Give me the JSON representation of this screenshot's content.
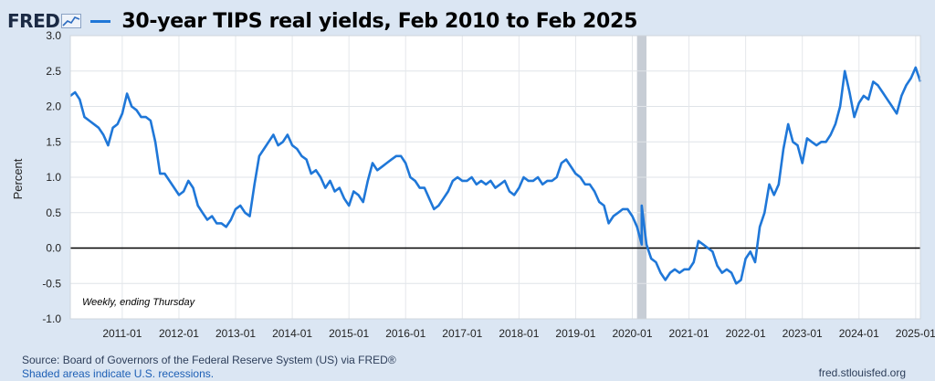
{
  "header": {
    "logo_text": "FRED",
    "logo_icon": "fred-graph-icon",
    "title": "30-year TIPS real yields, Feb 2010 to Feb 2025"
  },
  "colors": {
    "series": "#1f77d8",
    "background": "#dbe6f3",
    "plot_bg": "#ffffff",
    "recession": "#c7cdd5"
  },
  "footer": {
    "source": "Source: Board of Governors of the Federal Reserve System (US) via FRED®",
    "shading_note": "Shaded areas indicate U.S. recessions.",
    "url": "fred.stlouisfed.org"
  },
  "chart_data": {
    "type": "line",
    "title": "30-year TIPS real yields, Feb 2010 to Feb 2025",
    "ylabel": "Percent",
    "xlabel": "",
    "ylim": [
      -1.0,
      3.0
    ],
    "xlim": [
      "2010-02",
      "2025-02"
    ],
    "y_ticks": [
      "3.0",
      "2.5",
      "2.0",
      "1.5",
      "1.0",
      "0.5",
      "0.0",
      "-0.5",
      "-1.0"
    ],
    "x_ticks": [
      "2011-01",
      "2012-01",
      "2013-01",
      "2014-01",
      "2015-01",
      "2016-01",
      "2017-01",
      "2018-01",
      "2019-01",
      "2020-01",
      "2021-01",
      "2022-01",
      "2023-01",
      "2024-01",
      "2025-01"
    ],
    "annotation": "Weekly, ending Thursday",
    "zero_line": true,
    "grid": true,
    "recessions": [
      [
        "2020-02",
        "2020-04"
      ]
    ],
    "series": [
      {
        "values": [
          [
            "2010-02",
            2.15
          ],
          [
            "2010-03",
            2.2
          ],
          [
            "2010-04",
            2.1
          ],
          [
            "2010-05",
            1.85
          ],
          [
            "2010-06",
            1.8
          ],
          [
            "2010-07",
            1.75
          ],
          [
            "2010-08",
            1.7
          ],
          [
            "2010-09",
            1.6
          ],
          [
            "2010-10",
            1.45
          ],
          [
            "2010-11",
            1.7
          ],
          [
            "2010-12",
            1.75
          ],
          [
            "2011-01",
            1.9
          ],
          [
            "2011-02",
            2.18
          ],
          [
            "2011-03",
            2.0
          ],
          [
            "2011-04",
            1.95
          ],
          [
            "2011-05",
            1.85
          ],
          [
            "2011-06",
            1.85
          ],
          [
            "2011-07",
            1.8
          ],
          [
            "2011-08",
            1.5
          ],
          [
            "2011-09",
            1.05
          ],
          [
            "2011-10",
            1.05
          ],
          [
            "2011-11",
            0.95
          ],
          [
            "2011-12",
            0.85
          ],
          [
            "2012-01",
            0.75
          ],
          [
            "2012-02",
            0.8
          ],
          [
            "2012-03",
            0.95
          ],
          [
            "2012-04",
            0.85
          ],
          [
            "2012-05",
            0.6
          ],
          [
            "2012-06",
            0.5
          ],
          [
            "2012-07",
            0.4
          ],
          [
            "2012-08",
            0.45
          ],
          [
            "2012-09",
            0.35
          ],
          [
            "2012-10",
            0.35
          ],
          [
            "2012-11",
            0.3
          ],
          [
            "2012-12",
            0.4
          ],
          [
            "2013-01",
            0.55
          ],
          [
            "2013-02",
            0.6
          ],
          [
            "2013-03",
            0.5
          ],
          [
            "2013-04",
            0.45
          ],
          [
            "2013-05",
            0.9
          ],
          [
            "2013-06",
            1.3
          ],
          [
            "2013-07",
            1.4
          ],
          [
            "2013-08",
            1.5
          ],
          [
            "2013-09",
            1.6
          ],
          [
            "2013-10",
            1.45
          ],
          [
            "2013-11",
            1.5
          ],
          [
            "2013-12",
            1.6
          ],
          [
            "2014-01",
            1.45
          ],
          [
            "2014-02",
            1.4
          ],
          [
            "2014-03",
            1.3
          ],
          [
            "2014-04",
            1.25
          ],
          [
            "2014-05",
            1.05
          ],
          [
            "2014-06",
            1.1
          ],
          [
            "2014-07",
            1.0
          ],
          [
            "2014-08",
            0.85
          ],
          [
            "2014-09",
            0.95
          ],
          [
            "2014-10",
            0.8
          ],
          [
            "2014-11",
            0.85
          ],
          [
            "2014-12",
            0.7
          ],
          [
            "2015-01",
            0.6
          ],
          [
            "2015-02",
            0.8
          ],
          [
            "2015-03",
            0.75
          ],
          [
            "2015-04",
            0.65
          ],
          [
            "2015-05",
            0.95
          ],
          [
            "2015-06",
            1.2
          ],
          [
            "2015-07",
            1.1
          ],
          [
            "2015-08",
            1.15
          ],
          [
            "2015-09",
            1.2
          ],
          [
            "2015-10",
            1.25
          ],
          [
            "2015-11",
            1.3
          ],
          [
            "2015-12",
            1.3
          ],
          [
            "2016-01",
            1.2
          ],
          [
            "2016-02",
            1.0
          ],
          [
            "2016-03",
            0.95
          ],
          [
            "2016-04",
            0.85
          ],
          [
            "2016-05",
            0.85
          ],
          [
            "2016-06",
            0.7
          ],
          [
            "2016-07",
            0.55
          ],
          [
            "2016-08",
            0.6
          ],
          [
            "2016-09",
            0.7
          ],
          [
            "2016-10",
            0.8
          ],
          [
            "2016-11",
            0.95
          ],
          [
            "2016-12",
            1.0
          ],
          [
            "2017-01",
            0.95
          ],
          [
            "2017-02",
            0.95
          ],
          [
            "2017-03",
            1.0
          ],
          [
            "2017-04",
            0.9
          ],
          [
            "2017-05",
            0.95
          ],
          [
            "2017-06",
            0.9
          ],
          [
            "2017-07",
            0.95
          ],
          [
            "2017-08",
            0.85
          ],
          [
            "2017-09",
            0.9
          ],
          [
            "2017-10",
            0.95
          ],
          [
            "2017-11",
            0.8
          ],
          [
            "2017-12",
            0.75
          ],
          [
            "2018-01",
            0.85
          ],
          [
            "2018-02",
            1.0
          ],
          [
            "2018-03",
            0.95
          ],
          [
            "2018-04",
            0.95
          ],
          [
            "2018-05",
            1.0
          ],
          [
            "2018-06",
            0.9
          ],
          [
            "2018-07",
            0.95
          ],
          [
            "2018-08",
            0.95
          ],
          [
            "2018-09",
            1.0
          ],
          [
            "2018-10",
            1.2
          ],
          [
            "2018-11",
            1.25
          ],
          [
            "2018-12",
            1.15
          ],
          [
            "2019-01",
            1.05
          ],
          [
            "2019-02",
            1.0
          ],
          [
            "2019-03",
            0.9
          ],
          [
            "2019-04",
            0.9
          ],
          [
            "2019-05",
            0.8
          ],
          [
            "2019-06",
            0.65
          ],
          [
            "2019-07",
            0.6
          ],
          [
            "2019-08",
            0.35
          ],
          [
            "2019-09",
            0.45
          ],
          [
            "2019-10",
            0.5
          ],
          [
            "2019-11",
            0.55
          ],
          [
            "2019-12",
            0.55
          ],
          [
            "2020-01",
            0.45
          ],
          [
            "2020-02",
            0.3
          ],
          [
            "2020-03",
            0.05
          ],
          [
            "2020-03",
            0.6
          ],
          [
            "2020-04",
            0.05
          ],
          [
            "2020-05",
            -0.15
          ],
          [
            "2020-06",
            -0.2
          ],
          [
            "2020-07",
            -0.35
          ],
          [
            "2020-08",
            -0.45
          ],
          [
            "2020-09",
            -0.35
          ],
          [
            "2020-10",
            -0.3
          ],
          [
            "2020-11",
            -0.35
          ],
          [
            "2020-12",
            -0.3
          ],
          [
            "2021-01",
            -0.3
          ],
          [
            "2021-02",
            -0.2
          ],
          [
            "2021-03",
            0.1
          ],
          [
            "2021-04",
            0.05
          ],
          [
            "2021-05",
            0.0
          ],
          [
            "2021-06",
            -0.05
          ],
          [
            "2021-07",
            -0.25
          ],
          [
            "2021-08",
            -0.35
          ],
          [
            "2021-09",
            -0.3
          ],
          [
            "2021-10",
            -0.35
          ],
          [
            "2021-11",
            -0.5
          ],
          [
            "2021-12",
            -0.45
          ],
          [
            "2022-01",
            -0.15
          ],
          [
            "2022-02",
            -0.05
          ],
          [
            "2022-03",
            -0.2
          ],
          [
            "2022-04",
            0.3
          ],
          [
            "2022-05",
            0.5
          ],
          [
            "2022-06",
            0.9
          ],
          [
            "2022-07",
            0.75
          ],
          [
            "2022-08",
            0.9
          ],
          [
            "2022-09",
            1.4
          ],
          [
            "2022-10",
            1.75
          ],
          [
            "2022-11",
            1.5
          ],
          [
            "2022-12",
            1.45
          ],
          [
            "2023-01",
            1.2
          ],
          [
            "2023-02",
            1.55
          ],
          [
            "2023-03",
            1.5
          ],
          [
            "2023-04",
            1.45
          ],
          [
            "2023-05",
            1.5
          ],
          [
            "2023-06",
            1.5
          ],
          [
            "2023-07",
            1.6
          ],
          [
            "2023-08",
            1.75
          ],
          [
            "2023-09",
            2.0
          ],
          [
            "2023-10",
            2.5
          ],
          [
            "2023-11",
            2.2
          ],
          [
            "2023-12",
            1.85
          ],
          [
            "2024-01",
            2.05
          ],
          [
            "2024-02",
            2.15
          ],
          [
            "2024-03",
            2.1
          ],
          [
            "2024-04",
            2.35
          ],
          [
            "2024-05",
            2.3
          ],
          [
            "2024-06",
            2.2
          ],
          [
            "2024-07",
            2.1
          ],
          [
            "2024-08",
            2.0
          ],
          [
            "2024-09",
            1.9
          ],
          [
            "2024-10",
            2.15
          ],
          [
            "2024-11",
            2.3
          ],
          [
            "2024-12",
            2.4
          ],
          [
            "2025-01",
            2.55
          ],
          [
            "2025-02",
            2.35
          ]
        ]
      }
    ]
  }
}
